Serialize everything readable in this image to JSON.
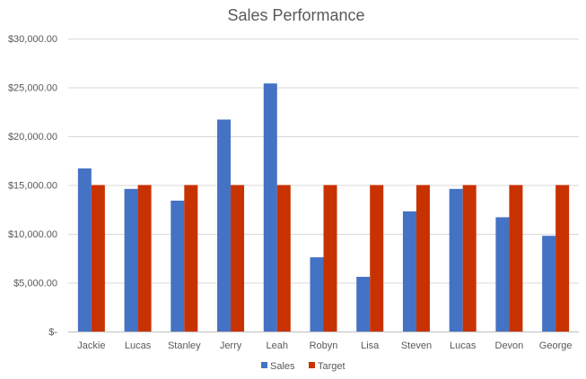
{
  "chart_data": {
    "type": "bar",
    "title": "Sales Performance",
    "xlabel": "",
    "ylabel": "",
    "categories": [
      "Jackie",
      "Lucas",
      "Stanley",
      "Jerry",
      "Leah",
      "Robyn",
      "Lisa",
      "Steven",
      "Lucas",
      "Devon",
      "George"
    ],
    "series": [
      {
        "name": "Sales",
        "color": "#4472c4",
        "values": [
          16700,
          14600,
          13400,
          21700,
          25400,
          7600,
          5600,
          12300,
          14600,
          11700,
          9800
        ]
      },
      {
        "name": "Target",
        "color": "#c83200",
        "values": [
          15000,
          15000,
          15000,
          15000,
          15000,
          15000,
          15000,
          15000,
          15000,
          15000,
          15000
        ]
      }
    ],
    "ylim": [
      0,
      30000
    ],
    "y_ticks": [
      0,
      5000,
      10000,
      15000,
      20000,
      25000,
      30000
    ],
    "y_tick_labels": [
      "$-",
      "$5,000.00",
      "$10,000.00",
      "$15,000.00",
      "$20,000.00",
      "$25,000.00",
      "$30,000.00"
    ],
    "grid": true,
    "legend_position": "bottom"
  }
}
